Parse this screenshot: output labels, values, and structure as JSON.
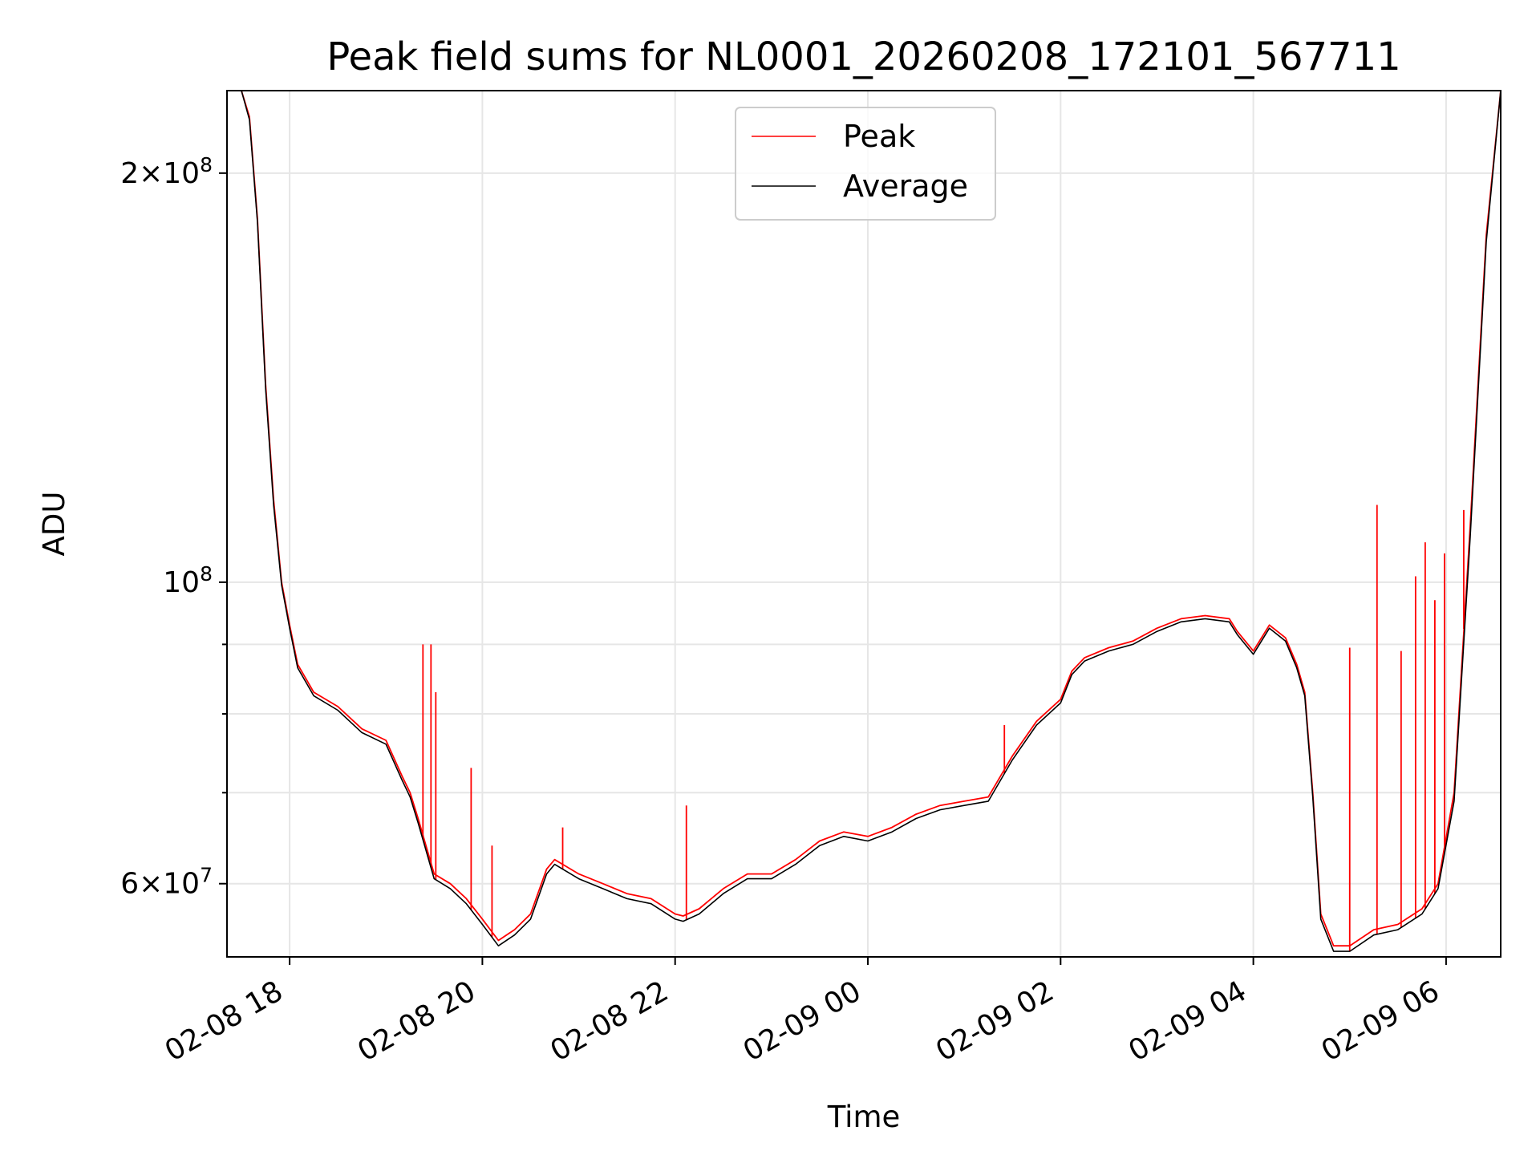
{
  "chart_data": {
    "type": "line",
    "title": "Peak field sums for NL0001_20260208_172101_567711",
    "xlabel": "Time",
    "ylabel": "ADU",
    "y_scale": "log",
    "ylim": [
      53000000,
      230000000
    ],
    "xlim": [
      "2026-02-08 17:21",
      "2026-02-09 06:34"
    ],
    "grid": true,
    "legend_placement": "upper-center",
    "x_ticks": [
      {
        "t": "2026-02-08 18:00",
        "label": "02-08 18"
      },
      {
        "t": "2026-02-08 20:00",
        "label": "02-08 20"
      },
      {
        "t": "2026-02-08 22:00",
        "label": "02-08 22"
      },
      {
        "t": "2026-02-09 00:00",
        "label": "02-09 00"
      },
      {
        "t": "2026-02-09 02:00",
        "label": "02-09 02"
      },
      {
        "t": "2026-02-09 04:00",
        "label": "02-09 04"
      },
      {
        "t": "2026-02-09 06:00",
        "label": "02-09 06"
      }
    ],
    "y_ticks": [
      {
        "v": 60000000,
        "base": "6×10",
        "exp": "7"
      },
      {
        "v": 100000000,
        "base": "10",
        "exp": "8"
      },
      {
        "v": 200000000,
        "base": "2×10",
        "exp": "8"
      }
    ],
    "y_minor_ticks": [
      70000000,
      80000000,
      90000000
    ],
    "series": [
      {
        "name": "Peak",
        "color": "#ff0000"
      },
      {
        "name": "Average",
        "color": "#000000"
      }
    ],
    "x": [
      "2026-02-08 17:21",
      "2026-02-08 17:30",
      "2026-02-08 17:35",
      "2026-02-08 17:40",
      "2026-02-08 17:45",
      "2026-02-08 17:50",
      "2026-02-08 17:55",
      "2026-02-08 18:00",
      "2026-02-08 18:05",
      "2026-02-08 18:15",
      "2026-02-08 18:30",
      "2026-02-08 18:45",
      "2026-02-08 19:00",
      "2026-02-08 19:10",
      "2026-02-08 19:15",
      "2026-02-08 19:20",
      "2026-02-08 19:30",
      "2026-02-08 19:40",
      "2026-02-08 19:50",
      "2026-02-08 20:00",
      "2026-02-08 20:10",
      "2026-02-08 20:20",
      "2026-02-08 20:30",
      "2026-02-08 20:40",
      "2026-02-08 20:45",
      "2026-02-08 20:50",
      "2026-02-08 21:00",
      "2026-02-08 21:15",
      "2026-02-08 21:30",
      "2026-02-08 21:45",
      "2026-02-08 22:00",
      "2026-02-08 22:05",
      "2026-02-08 22:15",
      "2026-02-08 22:30",
      "2026-02-08 22:45",
      "2026-02-08 23:00",
      "2026-02-08 23:15",
      "2026-02-08 23:30",
      "2026-02-08 23:45",
      "2026-02-09 00:00",
      "2026-02-09 00:15",
      "2026-02-09 00:30",
      "2026-02-09 00:45",
      "2026-02-09 01:00",
      "2026-02-09 01:15",
      "2026-02-09 01:30",
      "2026-02-09 01:45",
      "2026-02-09 02:00",
      "2026-02-09 02:07",
      "2026-02-09 02:15",
      "2026-02-09 02:30",
      "2026-02-09 02:45",
      "2026-02-09 03:00",
      "2026-02-09 03:15",
      "2026-02-09 03:30",
      "2026-02-09 03:45",
      "2026-02-09 03:50",
      "2026-02-09 04:00",
      "2026-02-09 04:10",
      "2026-02-09 04:20",
      "2026-02-09 04:27",
      "2026-02-09 04:32",
      "2026-02-09 04:37",
      "2026-02-09 04:42",
      "2026-02-09 04:50",
      "2026-02-09 05:00",
      "2026-02-09 05:15",
      "2026-02-09 05:30",
      "2026-02-09 05:45",
      "2026-02-09 05:55",
      "2026-02-09 06:05",
      "2026-02-09 06:15",
      "2026-02-09 06:25",
      "2026-02-09 06:34"
    ],
    "peak": [
      230000000,
      230000000,
      220000000,
      185000000,
      140000000,
      115000000,
      100000000,
      93000000,
      87000000,
      83000000,
      81000000,
      78000000,
      76500000,
      72000000,
      70000000,
      67000000,
      61000000,
      60000000,
      58500000,
      56500000,
      54500000,
      55500000,
      57000000,
      61500000,
      62500000,
      62000000,
      61000000,
      60000000,
      59000000,
      58500000,
      57000000,
      56800000,
      57500000,
      59500000,
      61000000,
      61000000,
      62500000,
      64500000,
      65500000,
      65000000,
      66000000,
      67500000,
      68500000,
      69000000,
      69500000,
      74500000,
      79000000,
      82000000,
      86000000,
      88000000,
      89500000,
      90500000,
      92500000,
      94000000,
      94500000,
      94000000,
      92000000,
      89000000,
      93000000,
      91000000,
      87000000,
      83000000,
      70000000,
      57000000,
      54000000,
      54000000,
      55500000,
      56000000,
      57500000,
      60000000,
      70000000,
      110000000,
      180000000,
      230000000
    ],
    "average": [
      230000000,
      230000000,
      219000000,
      184000000,
      139000000,
      114000000,
      99500000,
      92500000,
      86500000,
      82500000,
      80500000,
      77500000,
      76000000,
      71500000,
      69500000,
      66500000,
      60500000,
      59500000,
      58000000,
      56000000,
      54000000,
      55000000,
      56500000,
      61000000,
      62000000,
      61500000,
      60500000,
      59500000,
      58500000,
      58000000,
      56500000,
      56300000,
      57000000,
      59000000,
      60500000,
      60500000,
      62000000,
      64000000,
      65000000,
      64500000,
      65500000,
      67000000,
      68000000,
      68500000,
      69000000,
      74000000,
      78500000,
      81500000,
      85500000,
      87500000,
      89000000,
      90000000,
      92000000,
      93500000,
      94000000,
      93500000,
      91500000,
      88500000,
      92500000,
      90500000,
      86500000,
      82500000,
      69500000,
      56500000,
      53500000,
      53500000,
      55000000,
      55500000,
      57000000,
      59500000,
      69000000,
      108000000,
      178000000,
      230000000
    ],
    "peak_spikes": [
      {
        "t": "2026-02-08 19:23",
        "v": 90000000
      },
      {
        "t": "2026-02-08 19:28",
        "v": 90000000
      },
      {
        "t": "2026-02-08 19:31",
        "v": 83000000
      },
      {
        "t": "2026-02-08 19:53",
        "v": 73000000
      },
      {
        "t": "2026-02-08 20:06",
        "v": 64000000
      },
      {
        "t": "2026-02-08 20:50",
        "v": 66000000
      },
      {
        "t": "2026-02-08 22:07",
        "v": 68500000
      },
      {
        "t": "2026-02-09 01:25",
        "v": 78500000
      },
      {
        "t": "2026-02-09 05:00",
        "v": 89500000
      },
      {
        "t": "2026-02-09 05:17",
        "v": 114000000
      },
      {
        "t": "2026-02-09 05:32",
        "v": 89000000
      },
      {
        "t": "2026-02-09 05:41",
        "v": 101000000
      },
      {
        "t": "2026-02-09 05:47",
        "v": 107000000
      },
      {
        "t": "2026-02-09 05:53",
        "v": 97000000
      },
      {
        "t": "2026-02-09 05:59",
        "v": 105000000
      },
      {
        "t": "2026-02-09 06:11",
        "v": 113000000
      }
    ]
  },
  "legend": {
    "items": [
      {
        "label": "Peak",
        "color": "#ff0000"
      },
      {
        "label": "Average",
        "color": "#000000"
      }
    ]
  }
}
